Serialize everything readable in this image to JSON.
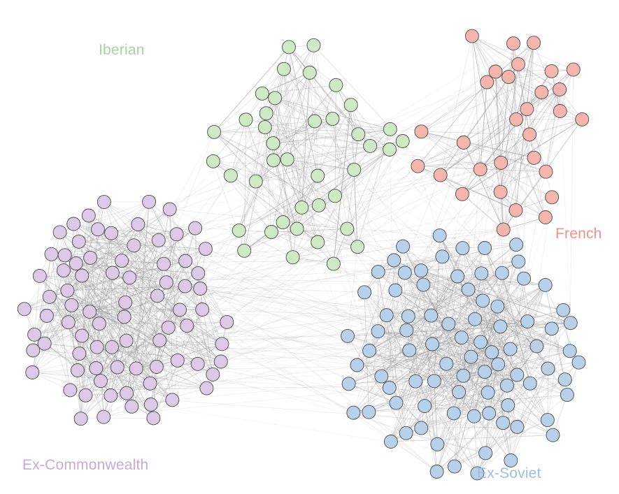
{
  "colors": {
    "iberian": "#a6d39e",
    "french": "#e8958a",
    "ex_commonwealth": "#c9a9d6",
    "ex_soviet": "#9ec0de",
    "node_fill_iberian": "#cdeac4",
    "node_fill_french": "#f5b5ad",
    "node_fill_commonwealth": "#dcc9e6",
    "node_fill_soviet": "#b7d1ea",
    "node_stroke": "#4a4a4a",
    "edge": "#9a9a9a"
  },
  "labels": {
    "iberian": "Iberian",
    "french": "French",
    "ex_commonwealth": "Ex-Commonwealth",
    "ex_soviet": "Ex-Soviet"
  },
  "graph": {
    "node_count": {
      "iberian": 40,
      "french": 30,
      "ex_commonwealth": 80,
      "ex_soviet": 85
    }
  }
}
